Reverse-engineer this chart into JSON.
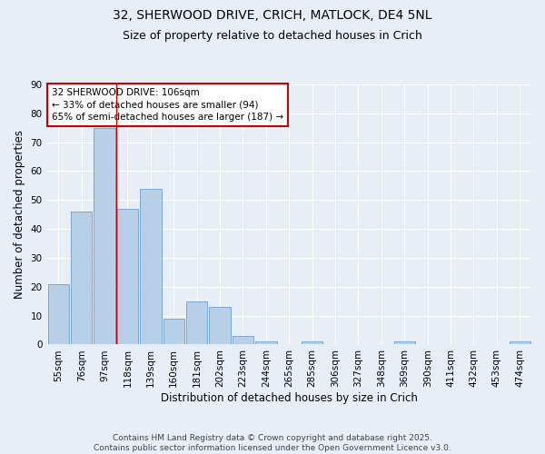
{
  "title_line1": "32, SHERWOOD DRIVE, CRICH, MATLOCK, DE4 5NL",
  "title_line2": "Size of property relative to detached houses in Crich",
  "xlabel": "Distribution of detached houses by size in Crich",
  "ylabel": "Number of detached properties",
  "categories": [
    "55sqm",
    "76sqm",
    "97sqm",
    "118sqm",
    "139sqm",
    "160sqm",
    "181sqm",
    "202sqm",
    "223sqm",
    "244sqm",
    "265sqm",
    "285sqm",
    "306sqm",
    "327sqm",
    "348sqm",
    "369sqm",
    "390sqm",
    "411sqm",
    "432sqm",
    "453sqm",
    "474sqm"
  ],
  "values": [
    21,
    46,
    75,
    47,
    54,
    9,
    15,
    13,
    3,
    1,
    0,
    1,
    0,
    0,
    0,
    1,
    0,
    0,
    0,
    0,
    1
  ],
  "bar_color": "#b8cfe8",
  "bar_edge_color": "#6a9fd0",
  "highlight_bar_index": 2,
  "vline_x": 2.5,
  "vline_color": "#cc0000",
  "annotation_text": "32 SHERWOOD DRIVE: 106sqm\n← 33% of detached houses are smaller (94)\n65% of semi-detached houses are larger (187) →",
  "annotation_box_color": "#ffffff",
  "annotation_box_edge_color": "#cc0000",
  "ylim": [
    0,
    90
  ],
  "yticks": [
    0,
    10,
    20,
    30,
    40,
    50,
    60,
    70,
    80,
    90
  ],
  "background_color": "#e8eef5",
  "plot_bg_color": "#e8eef5",
  "footer_text": "Contains HM Land Registry data © Crown copyright and database right 2025.\nContains public sector information licensed under the Open Government Licence v3.0.",
  "title_fontsize": 10,
  "subtitle_fontsize": 9,
  "axis_label_fontsize": 8.5,
  "tick_fontsize": 7.5,
  "annotation_fontsize": 7.5,
  "footer_fontsize": 6.5
}
